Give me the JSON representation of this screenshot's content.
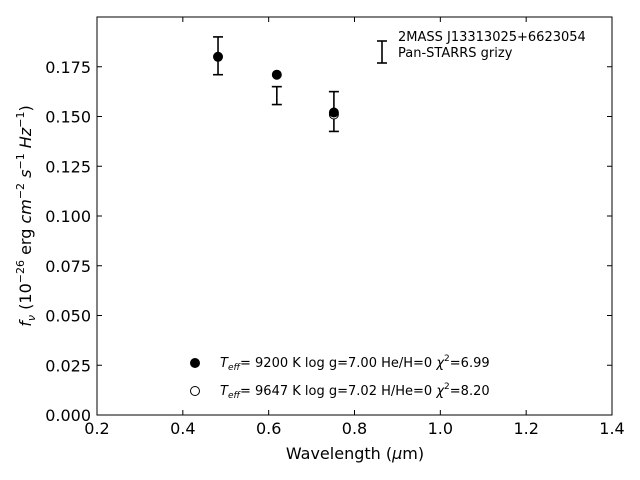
{
  "chart_data": {
    "type": "scatter",
    "xlabel": "Wavelength (μm)",
    "ylabel": "f_ν (10^-26 erg cm^-2 s^-1 Hz^-1)",
    "xlim": [
      0.2,
      1.4
    ],
    "ylim": [
      0.0,
      0.2
    ],
    "x_ticks": [
      0.2,
      0.4,
      0.6,
      0.8,
      1.0,
      1.2,
      1.4
    ],
    "x_tick_labels": [
      "0.2",
      "0.4",
      "0.6",
      "0.8",
      "1.0",
      "1.2",
      "1.4"
    ],
    "y_ticks": [
      0.0,
      0.025,
      0.05,
      0.075,
      0.1,
      0.125,
      0.15,
      0.175
    ],
    "y_tick_labels": [
      "0.000",
      "0.025",
      "0.050",
      "0.075",
      "0.100",
      "0.125",
      "0.150",
      "0.175"
    ],
    "grid": false,
    "observed": {
      "name": "Pan-STARRS grizy",
      "object": "2MASS J13313025+6623054",
      "points": [
        {
          "x": 0.482,
          "y": 0.1805,
          "err": 0.0095
        },
        {
          "x": 0.619,
          "y": 0.1605,
          "err": 0.0045
        },
        {
          "x": 0.752,
          "y": 0.1525,
          "err": 0.01
        }
      ]
    },
    "models": [
      {
        "marker": "filled-circle",
        "label": {
          "teff": "9200 K",
          "logg": "log g=7.00",
          "comp": "He/H=0",
          "chi2": "=6.99"
        },
        "points": [
          {
            "x": 0.482,
            "y": 0.18
          },
          {
            "x": 0.619,
            "y": 0.171
          },
          {
            "x": 0.752,
            "y": 0.152
          }
        ]
      },
      {
        "marker": "open-circle",
        "label": {
          "teff": "9647 K",
          "logg": "log g=7.02",
          "comp": "H/He=0",
          "chi2": "=8.20"
        },
        "points": [
          {
            "x": 0.752,
            "y": 0.151
          }
        ]
      }
    ],
    "legend_position": "upper-right (observed), lower-center (models)"
  }
}
